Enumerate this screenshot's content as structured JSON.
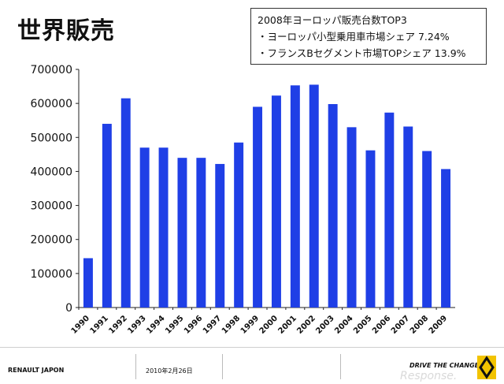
{
  "slide": {
    "title": "世界販売",
    "info_lines": [
      "2008年ヨーロッパ販売台数TOP3",
      "・ヨーロッパ小型乗用車市場シェア 7.24%",
      "・フランスBセグメント市場TOPシェア 13.9%"
    ]
  },
  "footer": {
    "company": "RENAULT JAPON",
    "date": "2010年2月26日",
    "slogan": "DRIVE THE CHANGE",
    "watermark": "Response."
  },
  "chart_data": {
    "type": "bar",
    "categories": [
      "1990",
      "1991",
      "1992",
      "1993",
      "1994",
      "1995",
      "1996",
      "1997",
      "1998",
      "1999",
      "2000",
      "2001",
      "2002",
      "2003",
      "2004",
      "2005",
      "2006",
      "2007",
      "2008",
      "2009"
    ],
    "values": [
      145000,
      540000,
      615000,
      470000,
      470000,
      440000,
      440000,
      422000,
      485000,
      590000,
      623000,
      653000,
      655000,
      598000,
      530000,
      462000,
      573000,
      532000,
      460000,
      407000
    ],
    "title": "",
    "xlabel": "",
    "ylabel": "",
    "ylim": [
      0,
      700000
    ],
    "yticks": [
      "0",
      "100000",
      "200000",
      "300000",
      "400000",
      "500000",
      "600000",
      "700000"
    ],
    "grid": false,
    "bar_color": "#1f3fe6"
  }
}
